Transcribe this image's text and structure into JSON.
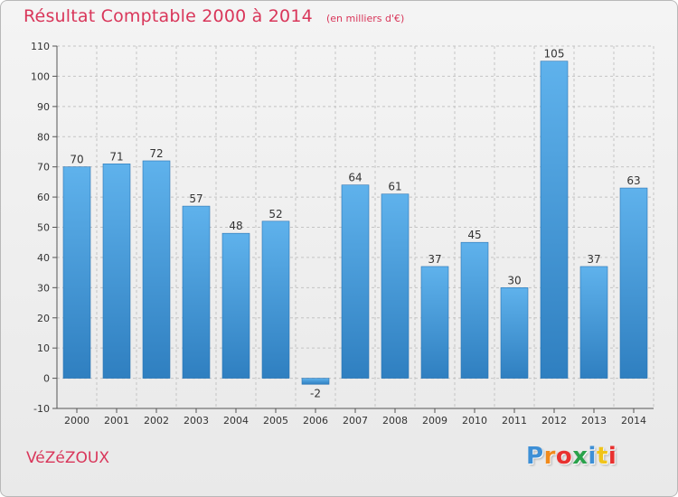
{
  "title": "Résultat Comptable 2000 à 2014",
  "subtitle": "(en milliers d'€)",
  "commune": "VéZéZOUX",
  "brand": {
    "letters": [
      "P",
      "r",
      "o",
      "x",
      "i",
      "t",
      "i"
    ],
    "colors": [
      "#3d8fd6",
      "#f08a1c",
      "#e8312f",
      "#2aa24b",
      "#3d8fd6",
      "#f0c419",
      "#e8312f"
    ]
  },
  "colors": {
    "title": "#d9365a",
    "bar_light": "#5fb2ec",
    "bar_dark": "#2f7fc0",
    "grid": "#c4c4c4",
    "axis": "#555555"
  },
  "chart_data": {
    "type": "bar",
    "categories": [
      "2000",
      "2001",
      "2002",
      "2003",
      "2004",
      "2005",
      "2006",
      "2007",
      "2008",
      "2009",
      "2010",
      "2011",
      "2012",
      "2013",
      "2014"
    ],
    "values": [
      70,
      71,
      72,
      57,
      48,
      52,
      -2,
      64,
      61,
      37,
      45,
      30,
      105,
      37,
      63
    ],
    "ylim": [
      -10,
      110
    ],
    "yticks": [
      -10,
      0,
      10,
      20,
      30,
      40,
      50,
      60,
      70,
      80,
      90,
      100,
      110
    ],
    "grid": true,
    "data_labels": true
  }
}
